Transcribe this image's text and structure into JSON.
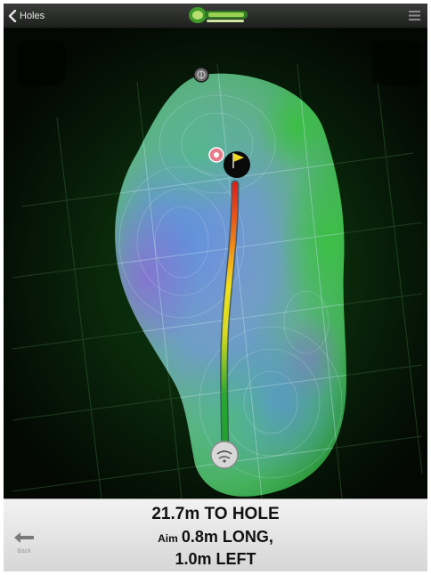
{
  "navbar": {
    "back_label": "Holes",
    "logo_icon": "breaking-putt-logo-icon",
    "menu_icon": "list-menu-icon"
  },
  "map": {
    "ball_icon": "golf-ball-icon",
    "hole_icon": "hole-with-flag-icon",
    "aim_marker_icon": "aim-target-icon",
    "compass_icon": "north-compass-icon",
    "putt_line_colors": [
      "#22a030",
      "#f2e21a",
      "#e0201a"
    ],
    "green_surface_colors": [
      "#4ab04a",
      "#6ea0c8",
      "#7a72c8"
    ]
  },
  "info": {
    "distance_text": "21.7m TO HOLE",
    "aim_label": "Aim",
    "aim_long_text": "0.8m LONG,",
    "aim_side_text": "1.0m LEFT",
    "back_label": "Back",
    "back_icon": "left-arrow-icon"
  }
}
